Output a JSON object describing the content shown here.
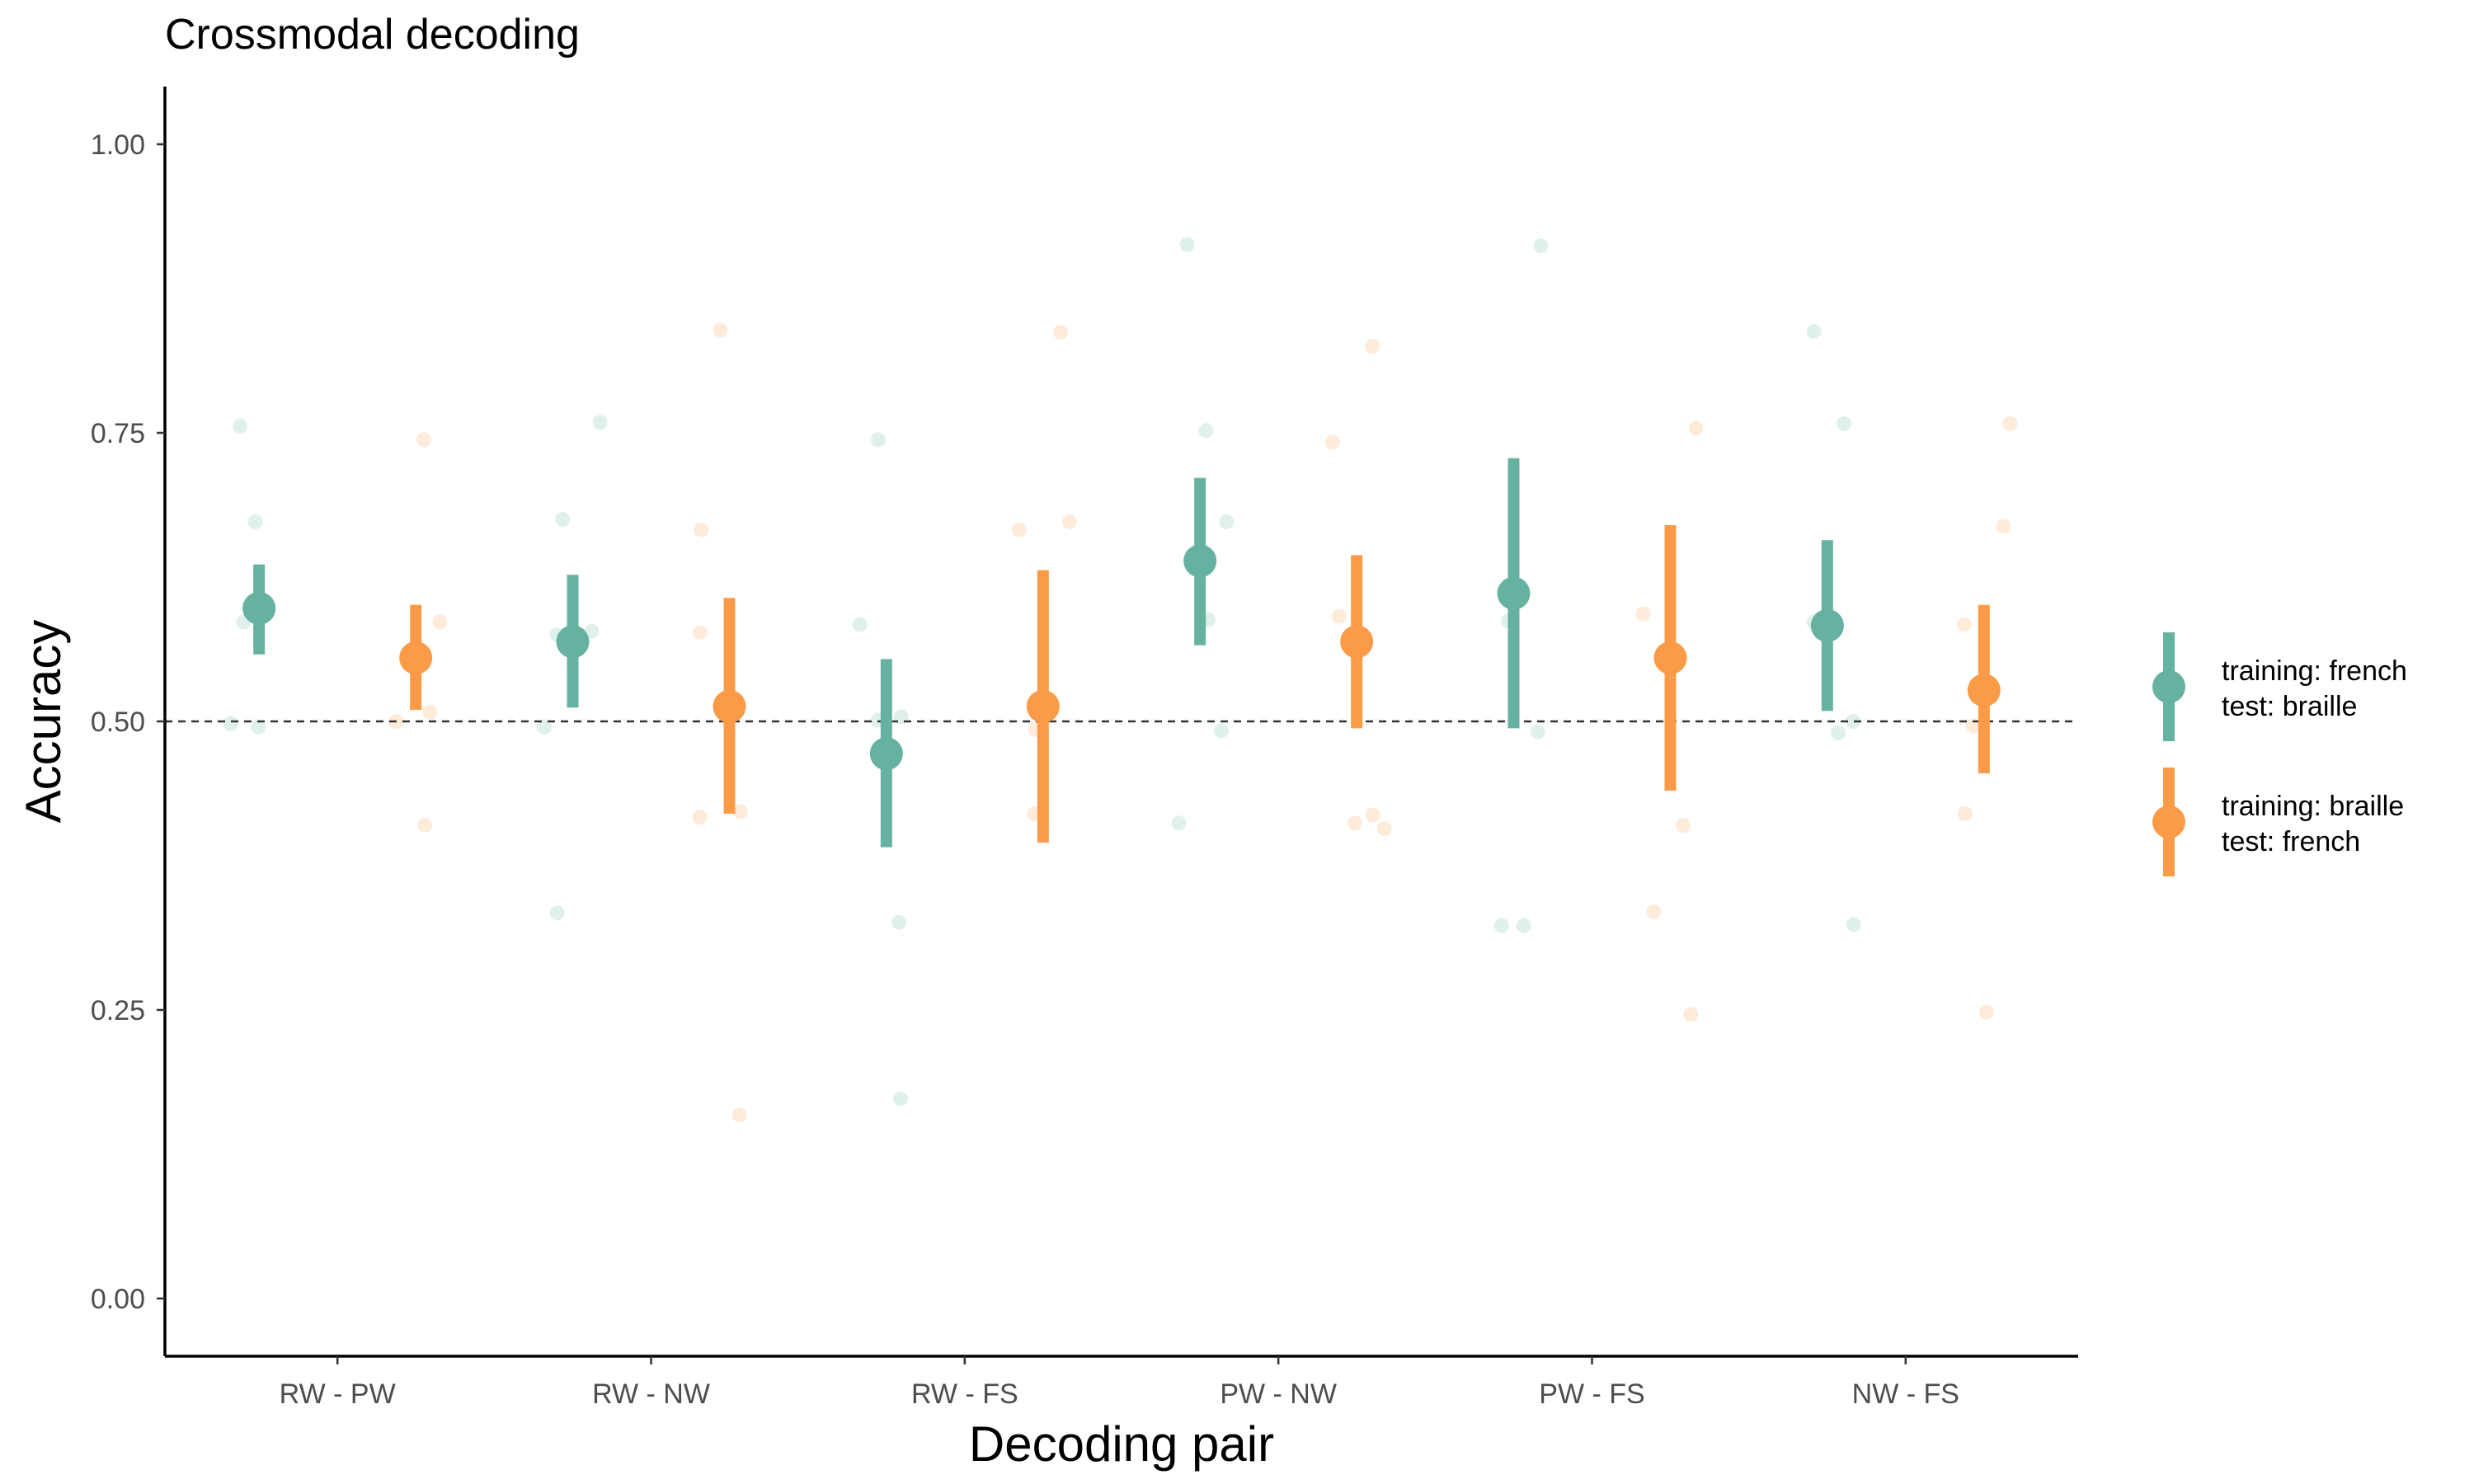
{
  "chart_data": {
    "type": "scatter",
    "title": "Crossmodal decoding",
    "xlabel": "Decoding pair",
    "ylabel": "Accuracy",
    "categories": [
      "RW - PW",
      "RW - NW",
      "RW - FS",
      "PW - NW",
      "PW - FS",
      "NW - FS"
    ],
    "ylim": [
      -0.05,
      1.05
    ],
    "yticks": [
      0.0,
      0.25,
      0.5,
      0.75,
      1.0
    ],
    "ytick_labels": [
      "0.00",
      "0.25",
      "0.50",
      "0.75",
      "1.00"
    ],
    "reference_line": 0.5,
    "grid": false,
    "legend_position": "right",
    "series": [
      {
        "name": "training: french\ntest: braille",
        "label_lines": [
          "training: french",
          "test: braille"
        ],
        "color": "#66b2a0",
        "means": [
          0.598,
          0.569,
          0.472,
          0.639,
          0.611,
          0.583
        ],
        "lower": [
          0.558,
          0.512,
          0.391,
          0.566,
          0.494,
          0.509
        ],
        "upper": [
          0.636,
          0.627,
          0.554,
          0.711,
          0.728,
          0.657
        ],
        "points": [
          [
            0.673,
            0.495,
            0.586,
            0.498,
            0.756
          ],
          [
            0.575,
            0.675,
            0.495,
            0.759,
            0.578,
            0.334
          ],
          [
            0.744,
            0.501,
            0.326,
            0.173,
            0.504,
            0.584
          ],
          [
            0.673,
            0.913,
            0.752,
            0.588,
            0.412,
            0.492
          ],
          [
            0.912,
            0.587,
            0.323,
            0.491,
            0.323
          ],
          [
            0.838,
            0.758,
            0.586,
            0.49,
            0.5,
            0.324
          ]
        ]
      },
      {
        "name": "training: braille\ntest: french",
        "label_lines": [
          "training: braille",
          "test: french"
        ],
        "color": "#fc9b47",
        "means": [
          0.555,
          0.513,
          0.513,
          0.569,
          0.555,
          0.527
        ],
        "lower": [
          0.51,
          0.42,
          0.395,
          0.494,
          0.44,
          0.455
        ],
        "upper": [
          0.601,
          0.607,
          0.631,
          0.644,
          0.67,
          0.601
        ],
        "points": [
          [
            0.744,
            0.586,
            0.41,
            0.5,
            0.508
          ],
          [
            0.666,
            0.839,
            0.577,
            0.159,
            0.417,
            0.422
          ],
          [
            0.837,
            0.493,
            0.42,
            0.666,
            0.673
          ],
          [
            0.825,
            0.742,
            0.591,
            0.419,
            0.412,
            0.407
          ],
          [
            0.754,
            0.593,
            0.41,
            0.335,
            0.246
          ],
          [
            0.669,
            0.758,
            0.584,
            0.496,
            0.42,
            0.248
          ]
        ]
      }
    ]
  }
}
